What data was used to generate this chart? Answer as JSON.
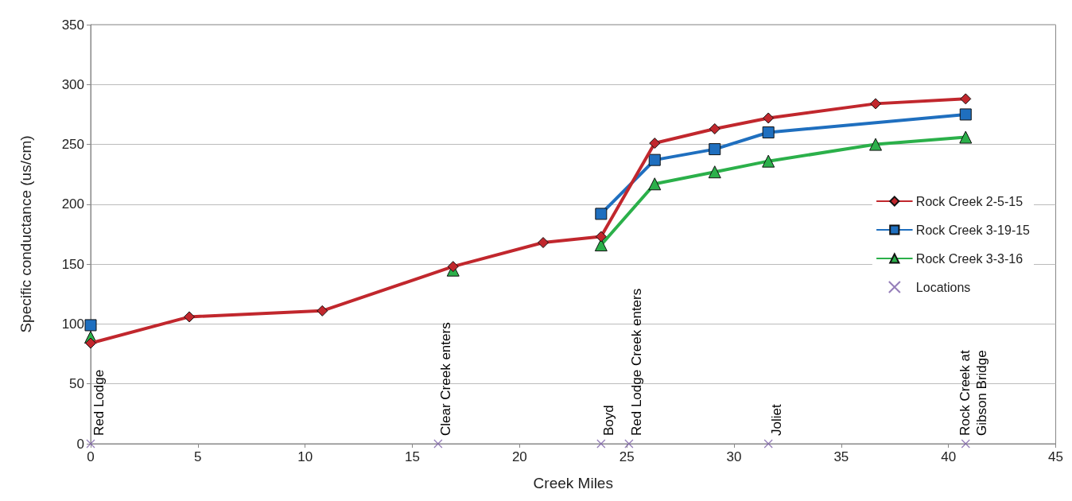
{
  "chart_data": {
    "type": "line",
    "xlabel": "Creek Miles",
    "ylabel": "Specific conductance (us/cm)",
    "xlim": [
      0,
      45
    ],
    "xticks": [
      0,
      5,
      10,
      15,
      20,
      25,
      30,
      35,
      40,
      45
    ],
    "ylim": [
      0,
      350
    ],
    "yticks": [
      0,
      50,
      100,
      150,
      200,
      250,
      300,
      350
    ],
    "grid": "y",
    "legend": "right",
    "series": [
      {
        "name": "Rock Creek 2-5-15",
        "color": "#c1272d",
        "marker": "diamond",
        "x": [
          0,
          4.6,
          10.8,
          16.9,
          21.1,
          23.8,
          26.3,
          29.1,
          31.6,
          36.6,
          40.8
        ],
        "values": [
          84,
          106,
          111,
          148,
          168,
          173,
          251,
          263,
          272,
          284,
          288
        ]
      },
      {
        "name": "Rock Creek 3-19-15",
        "color": "#1f6fbf",
        "marker": "square",
        "x": [
          0,
          16.9,
          23.8,
          26.3,
          29.1,
          31.6,
          40.8
        ],
        "values": [
          99,
          null,
          192,
          237,
          246,
          260,
          275
        ]
      },
      {
        "name": "Rock Creek 3-3-16",
        "color": "#2bb04a",
        "marker": "triangle",
        "x": [
          0,
          4.6,
          16.9,
          21.1,
          23.8,
          26.3,
          29.1,
          31.6,
          36.6,
          40.8
        ],
        "values": [
          89,
          null,
          145,
          null,
          166,
          217,
          227,
          236,
          250,
          256
        ]
      },
      {
        "name": "Locations",
        "type": "scatter",
        "color": "#7b5ea7",
        "marker": "cross",
        "x": [
          0,
          16.2,
          23.8,
          25.1,
          31.6,
          40.8
        ],
        "values": [
          0,
          0,
          0,
          0,
          0,
          0
        ]
      }
    ],
    "annotations": [
      {
        "text": "Red Lodge",
        "x": 0,
        "y": 0
      },
      {
        "text": "Clear Creek enters",
        "x": 16.2,
        "y": 0
      },
      {
        "text": "Boyd",
        "x": 23.8,
        "y": 0
      },
      {
        "text": "Red Lodge Creek enters",
        "x": 25.1,
        "y": 0
      },
      {
        "text": "Joliet",
        "x": 31.6,
        "y": 0
      },
      {
        "text": "Rock Creek at\nGibson Bridge",
        "x": 40.8,
        "y": 0
      }
    ]
  }
}
